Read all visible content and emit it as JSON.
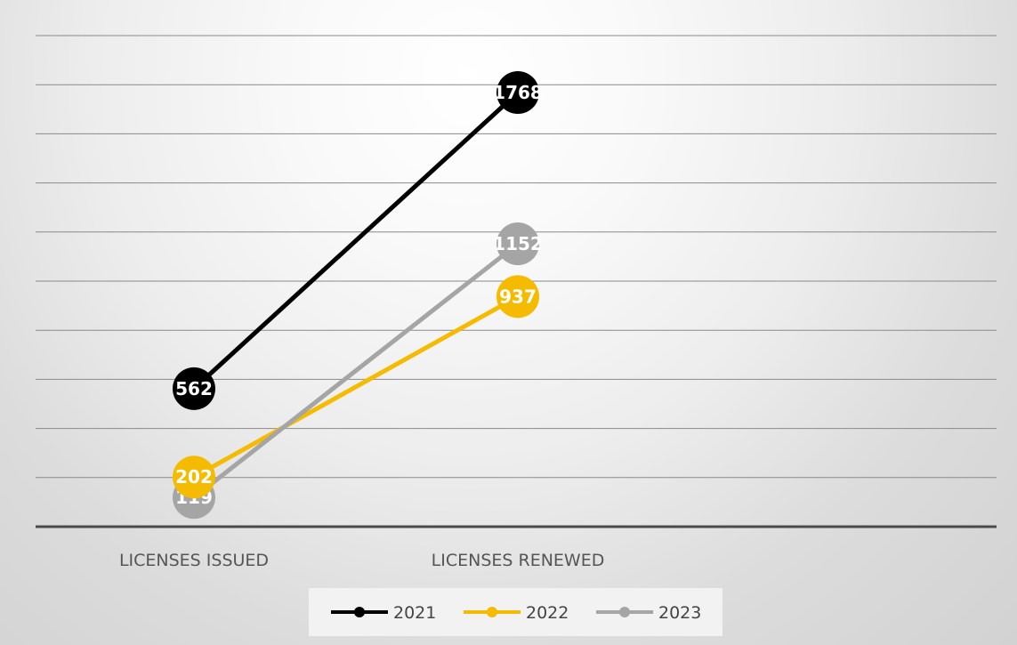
{
  "chart_data": {
    "type": "line",
    "title": "",
    "xlabel": "",
    "ylabel": "",
    "categories": [
      "LICENSES ISSUED",
      "LICENSES RENEWED"
    ],
    "series": [
      {
        "name": "2021",
        "values": [
          562,
          1768
        ],
        "color": "#000000"
      },
      {
        "name": "2022",
        "values": [
          202,
          937
        ],
        "color": "#f5bb00"
      },
      {
        "name": "2023",
        "values": [
          119,
          1152
        ],
        "color": "#a5a5a5"
      }
    ],
    "ylim": [
      0,
      2000
    ],
    "grid_step": 200,
    "y_tick_labels_visible": false,
    "data_labels": true,
    "grid": true,
    "legend": "bottom"
  }
}
